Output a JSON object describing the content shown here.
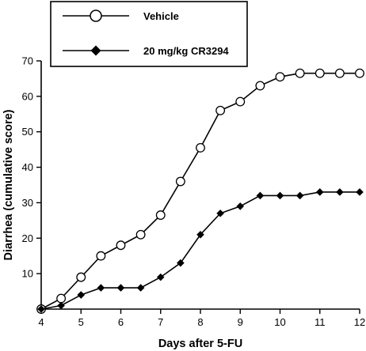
{
  "chart_data": {
    "type": "line",
    "xlabel": "Days after 5-FU",
    "ylabel": "Diarrhea (cumulative score)",
    "xlim": [
      4,
      12
    ],
    "ylim": [
      0,
      70
    ],
    "x_ticks": [
      4,
      5,
      6,
      7,
      8,
      9,
      10,
      11,
      12
    ],
    "y_ticks": [
      10,
      20,
      30,
      40,
      50,
      60,
      70
    ],
    "grid": false,
    "legend_position": "top-left",
    "x": [
      4,
      4.5,
      5,
      5.5,
      6,
      6.5,
      7,
      7.5,
      8,
      8.5,
      9,
      9.5,
      10,
      10.5,
      11,
      11.5,
      12
    ],
    "series": [
      {
        "name": "Vehicle",
        "marker": "open-circle",
        "values": [
          0,
          3,
          9,
          15,
          18,
          21,
          26.5,
          36,
          45.5,
          56,
          58.5,
          63,
          65.5,
          66.5,
          66.5,
          66.5,
          66.5
        ]
      },
      {
        "name": "20 mg/kg CR3294",
        "marker": "filled-diamond",
        "values": [
          0,
          1,
          4,
          6,
          6,
          6,
          9,
          13,
          21,
          27,
          29,
          32,
          32,
          32,
          33,
          33,
          33
        ]
      }
    ]
  }
}
